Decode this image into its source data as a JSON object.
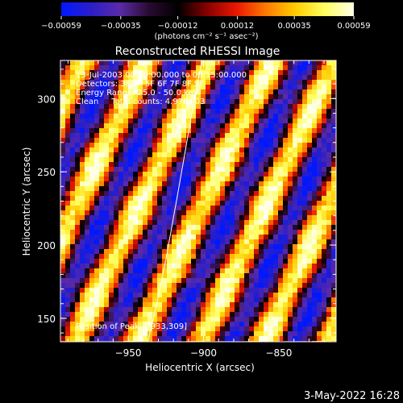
{
  "chart_data": {
    "type": "heatmap",
    "title": "Reconstructed RHESSI Image",
    "xlabel": "Heliocentric X (arcsec)",
    "ylabel": "Heliocentric Y (arcsec)",
    "xlim": [
      -995,
      -812
    ],
    "ylim": [
      134,
      326
    ],
    "xticks": [
      -950,
      -900,
      -850
    ],
    "yticks": [
      150,
      200,
      250,
      300
    ],
    "xtick_labels": [
      "−950",
      "−900",
      "−850"
    ],
    "ytick_labels": [
      "150",
      "200",
      "250",
      "300"
    ],
    "colorbar": {
      "range": [
        -0.00059,
        0.00059
      ],
      "ticks": [
        -0.00059,
        -0.00035,
        -0.00012,
        0.00012,
        0.00035,
        0.00059
      ],
      "tick_labels": [
        "−0.00059",
        "−0.00035",
        "−0.00012",
        "0.00012",
        "0.00035",
        "0.00059"
      ],
      "unit_label": "(photons cm⁻² s⁻¹ asec⁻²)",
      "colors": [
        "#0018ff",
        "#2a1ec8",
        "#5a2aa8",
        "#2a0a30",
        "#000000",
        "#8a0000",
        "#e81800",
        "#ff7a00",
        "#ffcc00",
        "#ffff60",
        "#ffffe8"
      ]
    },
    "annotations": [
      "13-Jul-2003 08:00:00.000 to 08:15:00.000",
      "Detectors: 3F 4F 5F 6F 7F 8F 9F",
      "Energy Range: 25.0 - 50.0 keV",
      "Clean     Total counts: 4.97E+03",
      "Position of Peak: [-933,309]"
    ],
    "stripe_angle_deg": 65,
    "stripe_period_arcsec": 38,
    "limb_curve": {
      "x": [
        -937,
        -931,
        -925,
        -918,
        -912,
        -907,
        -901
      ],
      "y": [
        134,
        160,
        190,
        230,
        265,
        295,
        326
      ]
    }
  },
  "footer": {
    "date": "3-May-2022 16:28"
  }
}
